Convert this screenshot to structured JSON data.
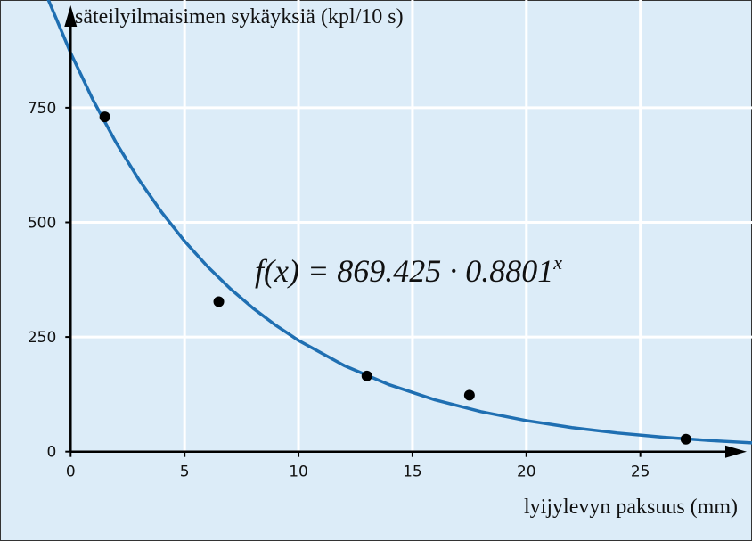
{
  "chart_data": {
    "type": "scatter",
    "y_label": "säteilyilmaisimen sykäyksiä (kpl/10 s)",
    "x_label": "lyijylevyn paksuus (mm)",
    "annotation": {
      "function": "f(x) = 869.425 · 0.8801",
      "exponent": "x"
    },
    "x": [
      1.5,
      6.5,
      13,
      17.5,
      27
    ],
    "values": [
      730,
      327,
      165,
      123,
      27
    ],
    "color": "#000000",
    "curve": {
      "color": "#1f6fb2",
      "x": [
        -1,
        0,
        1,
        2,
        3,
        4,
        5,
        6,
        7,
        8,
        9,
        10,
        12,
        14,
        16,
        18,
        20,
        22,
        24,
        26,
        28,
        30
      ],
      "values": [
        987.9,
        869.4,
        765.2,
        673.4,
        592.7,
        521.6,
        459.1,
        404.0,
        355.6,
        313.0,
        275.5,
        242.4,
        187.8,
        145.5,
        112.7,
        87.3,
        67.6,
        52.4,
        40.6,
        31.4,
        24.3,
        18.9
      ]
    },
    "xlim": [
      -3.1,
      29.9
    ],
    "ylim": [
      -195,
      985
    ],
    "xticks": [
      0,
      5,
      10,
      15,
      20,
      25
    ],
    "yticks": [
      0,
      250,
      500,
      750
    ],
    "grid": true
  }
}
